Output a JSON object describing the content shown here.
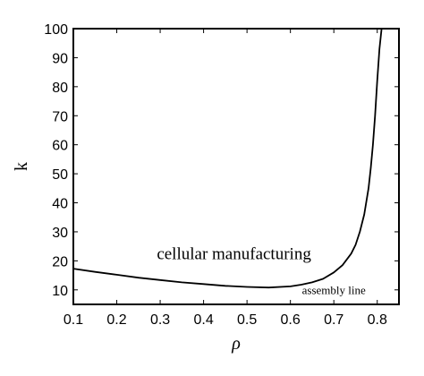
{
  "chart_data": {
    "type": "line",
    "title": "",
    "xlabel": "ρ",
    "ylabel": "k",
    "xlim": [
      0.1,
      0.85
    ],
    "ylim": [
      5,
      100
    ],
    "xticks": [
      0.1,
      0.2,
      0.3,
      0.4,
      0.5,
      0.6,
      0.7,
      0.8
    ],
    "xtick_labels": [
      "0.1",
      "0.2",
      "0.3",
      "0.4",
      "0.5",
      "0.6",
      "0.7",
      "0.8"
    ],
    "yticks": [
      10,
      20,
      30,
      40,
      50,
      60,
      70,
      80,
      90,
      100
    ],
    "ytick_labels": [
      "10",
      "20",
      "30",
      "40",
      "50",
      "60",
      "70",
      "80",
      "90",
      "100"
    ],
    "grid": false,
    "series": [
      {
        "x": [
          0.1,
          0.15,
          0.2,
          0.25,
          0.3,
          0.35,
          0.4,
          0.45,
          0.5,
          0.55,
          0.6,
          0.625,
          0.65,
          0.675,
          0.7,
          0.72,
          0.74,
          0.75,
          0.76,
          0.77,
          0.78,
          0.785,
          0.79,
          0.795,
          0.8,
          0.805,
          0.81
        ],
        "y": [
          17.3,
          16.2,
          15.2,
          14.2,
          13.4,
          12.6,
          12.0,
          11.4,
          11.0,
          10.8,
          11.2,
          11.8,
          12.6,
          13.8,
          16.0,
          18.5,
          22.5,
          25.5,
          30.0,
          36.0,
          45.0,
          52.0,
          60.0,
          70.0,
          82.0,
          93.0,
          100.0
        ],
        "color": "#000000"
      }
    ],
    "annotations": [
      {
        "text": "cellular manufacturing",
        "x": 0.47,
        "y": 20.5,
        "size": "large"
      },
      {
        "text": "assembly line",
        "x": 0.7,
        "y": 8.5,
        "size": "small"
      }
    ]
  }
}
